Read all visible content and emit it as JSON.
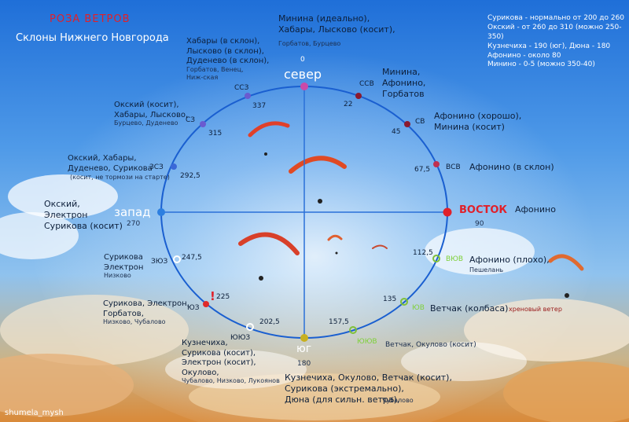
{
  "title": "РОЗА ВЕТРОВ",
  "subtitle": "Склоны Нижнего Новгорода",
  "legend": [
    "Сурикова - нормально от 200 до 260",
    "Окский - от 260 до 310 (можно 250-350)",
    "Кузнечиха - 190 (юг), Дюна - 180",
    "Афонино - около 80",
    "Минино - 0-5 (можно 350-40)"
  ],
  "watermark": "shumela_mysh",
  "colors": {
    "north": "#c94aa8",
    "east": "#e0202a",
    "south": "#c8b020",
    "west": "#2d7fe0",
    "ring": "#1a5fd0",
    "axis": "#2a70d8",
    "nne": "#8b1a2f",
    "nnw": "#6a5ad0",
    "ene": "#c03050",
    "wnw": "#3a68d8",
    "ese": "#7fc03a",
    "sse": "#7fc03a",
    "ssw": "#ffffff",
    "wsw": "#ffffff"
  },
  "rose": {
    "cardinals": [
      {
        "name": "север",
        "deg": "0"
      },
      {
        "name": "ВОСТОК",
        "deg": "90"
      },
      {
        "name": "юг",
        "deg": "180"
      },
      {
        "name": "запад",
        "deg": "270"
      }
    ],
    "points": [
      {
        "abbr": "ССВ",
        "deg": "22"
      },
      {
        "abbr": "СВ",
        "deg": "45"
      },
      {
        "abbr": "ВСВ",
        "deg": "67,5"
      },
      {
        "abbr": "ВЮВ",
        "deg": "112,5"
      },
      {
        "abbr": "ЮВ",
        "deg": "135"
      },
      {
        "abbr": "ЮЮВ",
        "deg": "157,5"
      },
      {
        "abbr": "ЮЮЗ",
        "deg": "202,5"
      },
      {
        "abbr": "ЮЗ",
        "deg": "225"
      },
      {
        "abbr": "ЗЮЗ",
        "deg": "247,5"
      },
      {
        "abbr": "ЗСЗ",
        "deg": "292,5"
      },
      {
        "abbr": "СЗ",
        "deg": "315"
      },
      {
        "abbr": "ССЗ",
        "deg": "337"
      }
    ],
    "warning": "!"
  },
  "slopes": {
    "n_main": "Минина (идеально),\nХабары, Лысково (косит),",
    "n_sub": "Горбатов, Бурцево",
    "nne": "Минина,\nАфонино,\nГорбатов",
    "ne": "Афонино (хорошо),\nМинина (косит)",
    "ene": "Афонино (в склон)",
    "e": "Афонино",
    "ese_main": "Афонино (плохо),",
    "ese_sub": "Пешелань",
    "se_main": "Ветчак (колбаса)",
    "se_note": "хреновый ветер",
    "sse": "Ветчак, Окулово (косит)",
    "s": "Кузнечиха, Окулово, Ветчак (косит),\nСурикова (экстремально),\nДюна (для сильн. ветра),",
    "s_sub": "Чубалово",
    "ssw_main": "Кузнечиха,\nСурикова (косит),\nЭлектрон (косит),\nОкулово,",
    "ssw_sub": "Чубалово, Низково, Лукоянов",
    "sw_main": "Сурикова, Электрон,\nГорбатов,",
    "sw_sub": "Низково, Чубалово",
    "wsw_main": "Сурикова\nЭлектрон",
    "wsw_sub": "Низково",
    "w": "Окский,\nЭлектрон\nСурикова (косит)",
    "wnw_main": "Окский, Хабары,\nДуденево, Сурикова",
    "wnw_sub": "(косит, не тормози на старте)",
    "nw_main": "Окский (косит),\nХабары, Лысково,",
    "nw_sub": "Бурцево, Дуденево",
    "nnw_main": "Хабары (в склон),\nЛысково (в склон),\nДуденево (в склон),",
    "nnw_sub": "Горбатов, Венец,\nНиж-ская"
  }
}
